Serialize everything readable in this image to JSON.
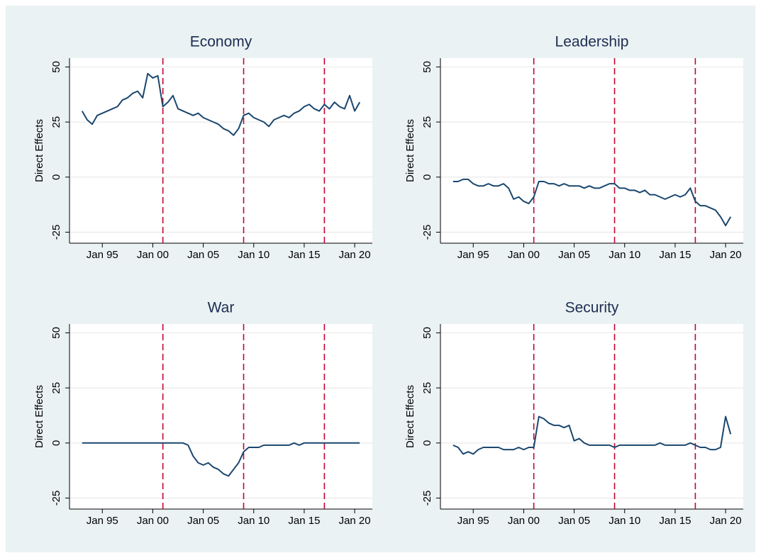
{
  "chart_data": [
    {
      "type": "line",
      "title": "Economy",
      "y_label": "Direct Effects",
      "color": "#1a476f",
      "grid": true,
      "x": [
        "1993-01",
        "1993-07",
        "1994-01",
        "1994-07",
        "1995-01",
        "1995-07",
        "1996-01",
        "1996-07",
        "1997-01",
        "1997-07",
        "1998-01",
        "1998-07",
        "1999-01",
        "1999-07",
        "2000-01",
        "2000-07",
        "2001-01",
        "2001-07",
        "2002-01",
        "2002-07",
        "2003-01",
        "2003-07",
        "2004-01",
        "2004-07",
        "2005-01",
        "2005-07",
        "2006-01",
        "2006-07",
        "2007-01",
        "2007-07",
        "2008-01",
        "2008-07",
        "2009-01",
        "2009-07",
        "2010-01",
        "2010-07",
        "2011-01",
        "2011-07",
        "2012-01",
        "2012-07",
        "2013-01",
        "2013-07",
        "2014-01",
        "2014-07",
        "2015-01",
        "2015-07",
        "2016-01",
        "2016-07",
        "2017-01",
        "2017-07",
        "2018-01",
        "2018-07",
        "2019-01",
        "2019-07",
        "2020-01",
        "2020-07"
      ],
      "values": [
        30,
        26,
        24,
        28,
        29,
        30,
        31,
        32,
        35,
        36,
        38,
        39,
        36,
        47,
        45,
        46,
        32,
        34,
        37,
        31,
        30,
        29,
        28,
        29,
        27,
        26,
        25,
        24,
        22,
        21,
        19,
        22,
        28,
        29,
        27,
        26,
        25,
        23,
        26,
        27,
        28,
        27,
        29,
        30,
        32,
        33,
        31,
        30,
        33,
        31,
        34,
        32,
        31,
        37,
        30,
        34
      ],
      "xlim": [
        "1991-10",
        "2021-10"
      ],
      "ylim": [
        -30,
        54
      ],
      "yticks": [
        -25,
        0,
        25,
        50
      ],
      "xticks": [
        {
          "value": "1995-01",
          "label": "Jan 95"
        },
        {
          "value": "2000-01",
          "label": "Jan 00"
        },
        {
          "value": "2005-01",
          "label": "Jan 05"
        },
        {
          "value": "2010-01",
          "label": "Jan 10"
        },
        {
          "value": "2015-01",
          "label": "Jan 15"
        },
        {
          "value": "2020-01",
          "label": "Jan 20"
        }
      ],
      "vlines": [
        "2001-01",
        "2009-01",
        "2017-01"
      ],
      "vline_color": "#c10534"
    },
    {
      "type": "line",
      "title": "Leadership",
      "y_label": "Direct Effects",
      "color": "#1a476f",
      "grid": true,
      "x": [
        "1993-01",
        "1993-07",
        "1994-01",
        "1994-07",
        "1995-01",
        "1995-07",
        "1996-01",
        "1996-07",
        "1997-01",
        "1997-07",
        "1998-01",
        "1998-07",
        "1999-01",
        "1999-07",
        "2000-01",
        "2000-07",
        "2001-01",
        "2001-07",
        "2002-01",
        "2002-07",
        "2003-01",
        "2003-07",
        "2004-01",
        "2004-07",
        "2005-01",
        "2005-07",
        "2006-01",
        "2006-07",
        "2007-01",
        "2007-07",
        "2008-01",
        "2008-07",
        "2009-01",
        "2009-07",
        "2010-01",
        "2010-07",
        "2011-01",
        "2011-07",
        "2012-01",
        "2012-07",
        "2013-01",
        "2013-07",
        "2014-01",
        "2014-07",
        "2015-01",
        "2015-07",
        "2016-01",
        "2016-07",
        "2017-01",
        "2017-07",
        "2018-01",
        "2018-07",
        "2019-01",
        "2019-07",
        "2020-01",
        "2020-07"
      ],
      "values": [
        -2,
        -2,
        -1,
        -1,
        -3,
        -4,
        -4,
        -3,
        -4,
        -4,
        -3,
        -5,
        -10,
        -9,
        -11,
        -12,
        -9,
        -2,
        -2,
        -3,
        -3,
        -4,
        -3,
        -4,
        -4,
        -4,
        -5,
        -4,
        -5,
        -5,
        -4,
        -3,
        -3,
        -5,
        -5,
        -6,
        -6,
        -7,
        -6,
        -8,
        -8,
        -9,
        -10,
        -9,
        -8,
        -9,
        -8,
        -5,
        -11,
        -13,
        -13,
        -14,
        -15,
        -18,
        -22,
        -18
      ],
      "xlim": [
        "1991-10",
        "2021-10"
      ],
      "ylim": [
        -30,
        54
      ],
      "yticks": [
        -25,
        0,
        25,
        50
      ],
      "xticks": [
        {
          "value": "1995-01",
          "label": "Jan 95"
        },
        {
          "value": "2000-01",
          "label": "Jan 00"
        },
        {
          "value": "2005-01",
          "label": "Jan 05"
        },
        {
          "value": "2010-01",
          "label": "Jan 10"
        },
        {
          "value": "2015-01",
          "label": "Jan 15"
        },
        {
          "value": "2020-01",
          "label": "Jan 20"
        }
      ],
      "vlines": [
        "2001-01",
        "2009-01",
        "2017-01"
      ],
      "vline_color": "#c10534"
    },
    {
      "type": "line",
      "title": "War",
      "y_label": "Direct Effects",
      "color": "#1a476f",
      "grid": true,
      "x": [
        "1993-01",
        "1993-07",
        "1994-01",
        "1994-07",
        "1995-01",
        "1995-07",
        "1996-01",
        "1996-07",
        "1997-01",
        "1997-07",
        "1998-01",
        "1998-07",
        "1999-01",
        "1999-07",
        "2000-01",
        "2000-07",
        "2001-01",
        "2001-07",
        "2002-01",
        "2002-07",
        "2003-01",
        "2003-07",
        "2004-01",
        "2004-07",
        "2005-01",
        "2005-07",
        "2006-01",
        "2006-07",
        "2007-01",
        "2007-07",
        "2008-01",
        "2008-07",
        "2009-01",
        "2009-07",
        "2010-01",
        "2010-07",
        "2011-01",
        "2011-07",
        "2012-01",
        "2012-07",
        "2013-01",
        "2013-07",
        "2014-01",
        "2014-07",
        "2015-01",
        "2015-07",
        "2016-01",
        "2016-07",
        "2017-01",
        "2017-07",
        "2018-01",
        "2018-07",
        "2019-01",
        "2019-07",
        "2020-01",
        "2020-07"
      ],
      "values": [
        0,
        0,
        0,
        0,
        0,
        0,
        0,
        0,
        0,
        0,
        0,
        0,
        0,
        0,
        0,
        0,
        0,
        0,
        0,
        0,
        0,
        -1,
        -6,
        -9,
        -10,
        -9,
        -11,
        -12,
        -14,
        -15,
        -12,
        -9,
        -4,
        -2,
        -2,
        -2,
        -1,
        -1,
        -1,
        -1,
        -1,
        -1,
        0,
        -1,
        0,
        0,
        0,
        0,
        0,
        0,
        0,
        0,
        0,
        0,
        0,
        0
      ],
      "xlim": [
        "1991-10",
        "2021-10"
      ],
      "ylim": [
        -30,
        54
      ],
      "yticks": [
        -25,
        0,
        25,
        50
      ],
      "xticks": [
        {
          "value": "1995-01",
          "label": "Jan 95"
        },
        {
          "value": "2000-01",
          "label": "Jan 00"
        },
        {
          "value": "2005-01",
          "label": "Jan 05"
        },
        {
          "value": "2010-01",
          "label": "Jan 10"
        },
        {
          "value": "2015-01",
          "label": "Jan 15"
        },
        {
          "value": "2020-01",
          "label": "Jan 20"
        }
      ],
      "vlines": [
        "2001-01",
        "2009-01",
        "2017-01"
      ],
      "vline_color": "#c10534"
    },
    {
      "type": "line",
      "title": "Security",
      "y_label": "Direct Effects",
      "color": "#1a476f",
      "grid": true,
      "x": [
        "1993-01",
        "1993-07",
        "1994-01",
        "1994-07",
        "1995-01",
        "1995-07",
        "1996-01",
        "1996-07",
        "1997-01",
        "1997-07",
        "1998-01",
        "1998-07",
        "1999-01",
        "1999-07",
        "2000-01",
        "2000-07",
        "2001-01",
        "2001-07",
        "2002-01",
        "2002-07",
        "2003-01",
        "2003-07",
        "2004-01",
        "2004-07",
        "2005-01",
        "2005-07",
        "2006-01",
        "2006-07",
        "2007-01",
        "2007-07",
        "2008-01",
        "2008-07",
        "2009-01",
        "2009-07",
        "2010-01",
        "2010-07",
        "2011-01",
        "2011-07",
        "2012-01",
        "2012-07",
        "2013-01",
        "2013-07",
        "2014-01",
        "2014-07",
        "2015-01",
        "2015-07",
        "2016-01",
        "2016-07",
        "2017-01",
        "2017-07",
        "2018-01",
        "2018-07",
        "2019-01",
        "2019-07",
        "2020-01",
        "2020-07"
      ],
      "values": [
        -1,
        -2,
        -5,
        -4,
        -5,
        -3,
        -2,
        -2,
        -2,
        -2,
        -3,
        -3,
        -3,
        -2,
        -3,
        -2,
        -2,
        12,
        11,
        9,
        8,
        8,
        7,
        8,
        1,
        2,
        0,
        -1,
        -1,
        -1,
        -1,
        -1,
        -2,
        -1,
        -1,
        -1,
        -1,
        -1,
        -1,
        -1,
        -1,
        0,
        -1,
        -1,
        -1,
        -1,
        -1,
        0,
        -1,
        -2,
        -2,
        -3,
        -3,
        -2,
        12,
        4
      ],
      "xlim": [
        "1991-10",
        "2021-10"
      ],
      "ylim": [
        -30,
        54
      ],
      "yticks": [
        -25,
        0,
        25,
        50
      ],
      "xticks": [
        {
          "value": "1995-01",
          "label": "Jan 95"
        },
        {
          "value": "2000-01",
          "label": "Jan 00"
        },
        {
          "value": "2005-01",
          "label": "Jan 05"
        },
        {
          "value": "2010-01",
          "label": "Jan 10"
        },
        {
          "value": "2015-01",
          "label": "Jan 15"
        },
        {
          "value": "2020-01",
          "label": "Jan 20"
        }
      ],
      "vlines": [
        "2001-01",
        "2009-01",
        "2017-01"
      ],
      "vline_color": "#c10534"
    }
  ]
}
